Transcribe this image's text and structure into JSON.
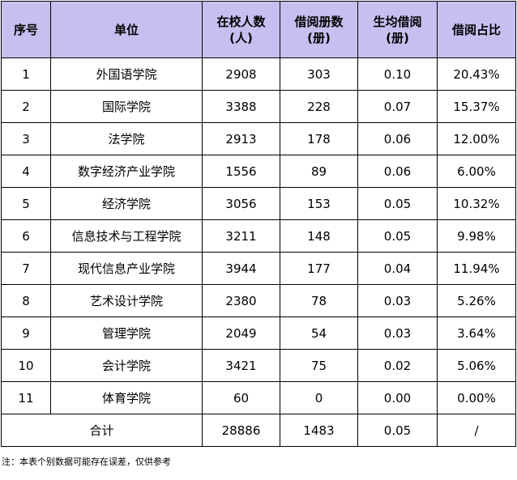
{
  "table": {
    "headers": [
      "序号",
      "单位",
      "在校人数\n(人)",
      "借阅册数\n(册)",
      "生均借阅\n(册)",
      "借阅占比"
    ],
    "rows": [
      [
        "1",
        "外国语学院",
        "2908",
        "303",
        "0.10",
        "20.43%"
      ],
      [
        "2",
        "国际学院",
        "3388",
        "228",
        "0.07",
        "15.37%"
      ],
      [
        "3",
        "法学院",
        "2913",
        "178",
        "0.06",
        "12.00%"
      ],
      [
        "4",
        "数字经济产业学院",
        "1556",
        "89",
        "0.06",
        "6.00%"
      ],
      [
        "5",
        "经济学院",
        "3056",
        "153",
        "0.05",
        "10.32%"
      ],
      [
        "6",
        "信息技术与工程学院",
        "3211",
        "148",
        "0.05",
        "9.98%"
      ],
      [
        "7",
        "现代信息产业学院",
        "3944",
        "177",
        "0.04",
        "11.94%"
      ],
      [
        "8",
        "艺术设计学院",
        "2380",
        "78",
        "0.03",
        "5.26%"
      ],
      [
        "9",
        "管理学院",
        "2049",
        "54",
        "0.03",
        "3.64%"
      ],
      [
        "10",
        "会计学院",
        "3421",
        "75",
        "0.02",
        "5.06%"
      ],
      [
        "11",
        "体育学院",
        "60",
        "0",
        "0.00",
        "0.00%"
      ]
    ],
    "total": {
      "label": "合计",
      "students": "28886",
      "borrowed": "1483",
      "per_student": "0.05",
      "share": "/"
    },
    "header_bg": "#c8bff0"
  },
  "note": "注：本表个别数据可能存在误差，仅供参考"
}
